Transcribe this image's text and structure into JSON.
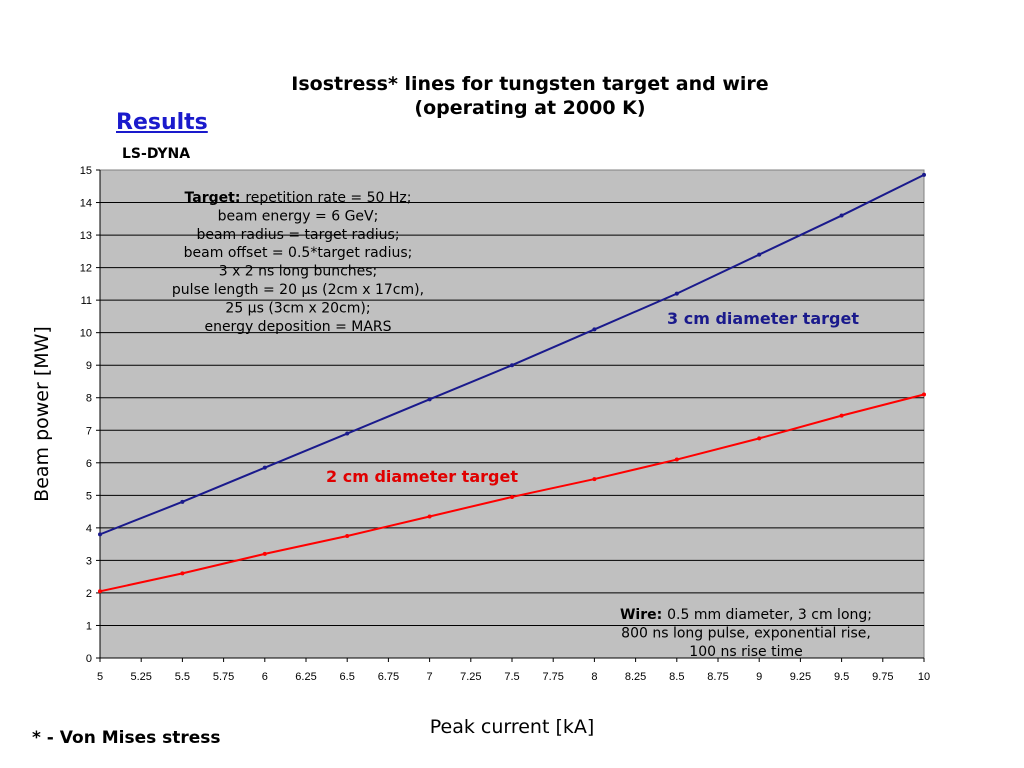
{
  "page": {
    "results_label": "Results",
    "code_label": "LS-DYNA",
    "footnote": "* - Von Mises stress"
  },
  "chart_data": {
    "type": "line",
    "title_line1": "Isostress* lines for tungsten target and wire",
    "title_line2": "(operating at 2000 K)",
    "xlabel": "Peak current [kA]",
    "ylabel": "Beam power [MW]",
    "xlim": [
      5,
      10
    ],
    "ylim": [
      0,
      15
    ],
    "x_ticks": [
      "5",
      "5.25",
      "5.5",
      "5.75",
      "6",
      "6.25",
      "6.5",
      "6.75",
      "7",
      "7.25",
      "7.5",
      "7.75",
      "8",
      "8.25",
      "8.5",
      "8.75",
      "9",
      "9.25",
      "9.5",
      "9.75",
      "10"
    ],
    "y_ticks": [
      "0",
      "1",
      "2",
      "3",
      "4",
      "5",
      "6",
      "7",
      "8",
      "9",
      "10",
      "11",
      "12",
      "13",
      "14",
      "15"
    ],
    "grid": "horizontal",
    "plot_background": "#c0c0c0",
    "series": [
      {
        "name": "3 cm diameter target",
        "color": "#1a1a8c",
        "x": [
          5,
          5.5,
          6,
          6.5,
          7,
          7.5,
          8,
          8.5,
          9,
          9.5,
          10
        ],
        "y": [
          3.8,
          4.8,
          5.85,
          6.9,
          7.95,
          9.0,
          10.1,
          11.2,
          12.4,
          13.6,
          14.85
        ]
      },
      {
        "name": "2 cm diameter target",
        "color": "#ff0000",
        "x": [
          5,
          5.5,
          6,
          6.5,
          7,
          7.5,
          8,
          8.5,
          9,
          9.5,
          10
        ],
        "y": [
          2.05,
          2.6,
          3.2,
          3.75,
          4.35,
          4.95,
          5.5,
          6.1,
          6.75,
          7.45,
          8.1
        ]
      }
    ],
    "annotation_target": {
      "heading": "Target:",
      "lines": [
        "repetition rate = 50 Hz;",
        "beam energy = 6 GeV;",
        "beam radius = target radius;",
        "beam offset = 0.5*target radius;",
        "3 x 2 ns long bunches;",
        "pulse length = 20 μs (2cm x 17cm),",
        "25 μs (3cm x 20cm);",
        "energy deposition = MARS"
      ]
    },
    "annotation_wire": {
      "heading": "Wire:",
      "lines": [
        "0.5 mm diameter, 3 cm long;",
        "800 ns long pulse, exponential rise,",
        "100 ns rise time"
      ]
    }
  }
}
